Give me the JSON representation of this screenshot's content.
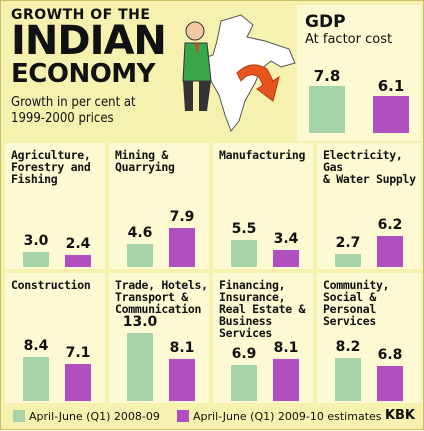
{
  "header": {
    "title_line1": "GROWTH OF THE",
    "title_line2": "INDIAN",
    "title_line3": "ECONOMY",
    "subtitle": "Growth in per cent at 1999-2000 prices"
  },
  "colors": {
    "series1": "#a6d4a8",
    "series2": "#b14fc1",
    "background": "#f7f1b0",
    "panel": "#fdf9d2"
  },
  "legend": {
    "series1": "April-June (Q1) 2008-09",
    "series2": "April-June (Q1) 2009-10 estimates"
  },
  "credit": "KBK",
  "chart_data": [
    {
      "type": "bar",
      "title": "GDP",
      "subtitle": "At factor cost",
      "values": [
        7.8,
        6.1
      ]
    },
    {
      "type": "bar",
      "title": "Agriculture, Forestry and Fishing",
      "values": [
        3.0,
        2.4
      ]
    },
    {
      "type": "bar",
      "title": "Mining & Quarrying",
      "values": [
        4.6,
        7.9
      ]
    },
    {
      "type": "bar",
      "title": "Manufacturing",
      "values": [
        5.5,
        3.4
      ]
    },
    {
      "type": "bar",
      "title": "Electricity, Gas & Water Supply",
      "values": [
        2.7,
        6.2
      ]
    },
    {
      "type": "bar",
      "title": "Construction",
      "values": [
        8.4,
        7.1
      ]
    },
    {
      "type": "bar",
      "title": "Trade, Hotels, Transport & Communication",
      "values": [
        13.0,
        8.1
      ]
    },
    {
      "type": "bar",
      "title": "Financing, Insurance, Real Estate & Business Services",
      "values": [
        6.9,
        8.1
      ]
    },
    {
      "type": "bar",
      "title": "Community, Social & Personal Services",
      "values": [
        8.2,
        6.8
      ]
    }
  ],
  "value_labels": [
    [
      "7.8",
      "6.1"
    ],
    [
      "3.0",
      "2.4"
    ],
    [
      "4.6",
      "7.9"
    ],
    [
      "5.5",
      "3.4"
    ],
    [
      "2.7",
      "6.2"
    ],
    [
      "8.4",
      "7.1"
    ],
    [
      "13.0",
      "8.1"
    ],
    [
      "6.9",
      "8.1"
    ],
    [
      "8.2",
      "6.8"
    ]
  ],
  "panel_titles": [
    [
      "GDP"
    ],
    [
      "Agriculture,",
      "Forestry and",
      "Fishing"
    ],
    [
      "Mining &",
      "Quarrying"
    ],
    [
      "Manufacturing"
    ],
    [
      "Electricity, Gas",
      "& Water Supply"
    ],
    [
      "Construction"
    ],
    [
      "Trade, Hotels,",
      "Transport &",
      "Communication"
    ],
    [
      "Financing,",
      "Insurance,",
      "Real Estate &",
      "Business Services"
    ],
    [
      "Community,",
      "Social & Personal",
      "Services"
    ]
  ]
}
